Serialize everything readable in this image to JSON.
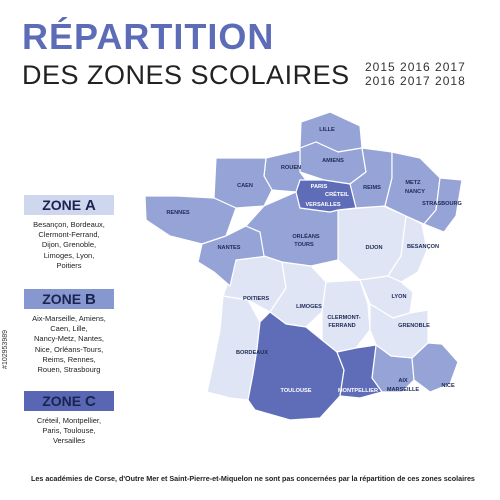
{
  "title": {
    "line1": "RÉPARTITION",
    "line2": "DES ZONES SCOLAIRES",
    "years_top": "2015  2016  2017",
    "years_bottom": "2016  2017  2018"
  },
  "zones": [
    {
      "id": "A",
      "label": "ZONE",
      "letter": "A",
      "color": "#cfd7ee",
      "cities": [
        "Besançon, Bordeaux,",
        "Clermont-Ferrand,",
        "Dijon, Grenoble,",
        "Limoges, Lyon,",
        "Poitiers"
      ]
    },
    {
      "id": "B",
      "label": "ZONE",
      "letter": "B",
      "color": "#8797cf",
      "cities": [
        "Aix-Marseille, Amiens,",
        "Caen, Lille,",
        "Nancy-Metz, Nantes,",
        "Nice, Orléans-Tours,",
        "Reims, Rennes,",
        "Rouen, Strasbourg"
      ]
    },
    {
      "id": "C",
      "label": "ZONE",
      "letter": "C",
      "color": "#5866b3",
      "cities": [
        "Créteil, Montpellier,",
        "Paris, Toulouse,",
        "Versailles"
      ]
    }
  ],
  "colors": {
    "zoneA": "#dfe5f5",
    "zoneB": "#95a3d6",
    "zoneC": "#5f6cb8",
    "title": "#5d6cb7",
    "border": "#ffffff"
  },
  "regions": {
    "lille": "LILLE",
    "amiens": "AMIENS",
    "rouen": "ROUEN",
    "caen": "CAEN",
    "rennes": "RENNES",
    "paris": "PARIS",
    "creteil": "CRÉTEIL",
    "versailles": "VERSAILLES",
    "reims": "REIMS",
    "metz": "METZ",
    "nancy": "NANCY",
    "strasbourg": "STRASBOURG",
    "nantes": "NANTES",
    "orleans": "ORLÉANS",
    "tours": "TOURS",
    "dijon": "DIJON",
    "besancon": "BESANÇON",
    "poitiers": "POITIERS",
    "limoges": "LIMOGES",
    "clermont": "CLERMONT-",
    "ferrand": "FERRAND",
    "lyon": "LYON",
    "grenoble": "GRENOBLE",
    "bordeaux": "BORDEAUX",
    "toulouse": "TOULOUSE",
    "montpellier": "MONTPELLIER",
    "aix": "AIX",
    "marseille": "MARSEILLE",
    "nice": "NICE"
  },
  "footnote": "Les académies de Corse, d'Outre Mer et Saint-Pierre-et-Miquelon ne sont pas concernées par la répartition de ces zones scolaires",
  "stock_id": "#102953989"
}
